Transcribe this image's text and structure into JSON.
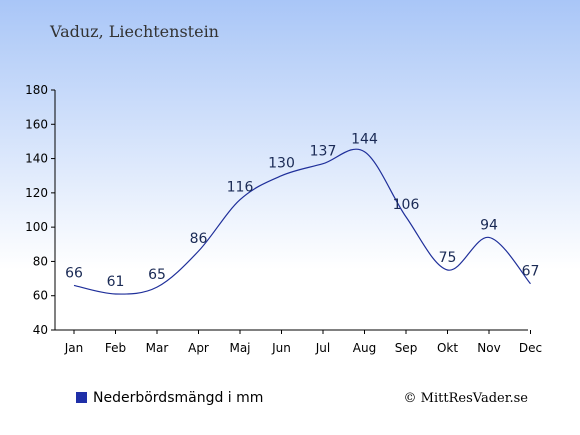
{
  "chart_data": {
    "type": "line",
    "title": "Vaduz, Liechtenstein",
    "categories": [
      "Jan",
      "Feb",
      "Mar",
      "Apr",
      "Maj",
      "Jun",
      "Jul",
      "Aug",
      "Sep",
      "Okt",
      "Nov",
      "Dec"
    ],
    "series": [
      {
        "name": "Nederbördsmängd i mm",
        "values": [
          66,
          61,
          65,
          86,
          116,
          130,
          137,
          144,
          106,
          75,
          94,
          67
        ]
      }
    ],
    "yticks": [
      40,
      60,
      80,
      100,
      120,
      140,
      160,
      180
    ],
    "ylim": [
      40,
      180
    ],
    "xlabel": "",
    "ylabel": "",
    "legend_position": "bottom-left",
    "grid": false,
    "colors": {
      "line": "#1f2f9a",
      "legend_marker": "#1f2fa8",
      "background_top": "#a9c6f7",
      "background_bottom": "#ffffff"
    }
  },
  "footer": {
    "copyright": "© MittResVader.se"
  }
}
